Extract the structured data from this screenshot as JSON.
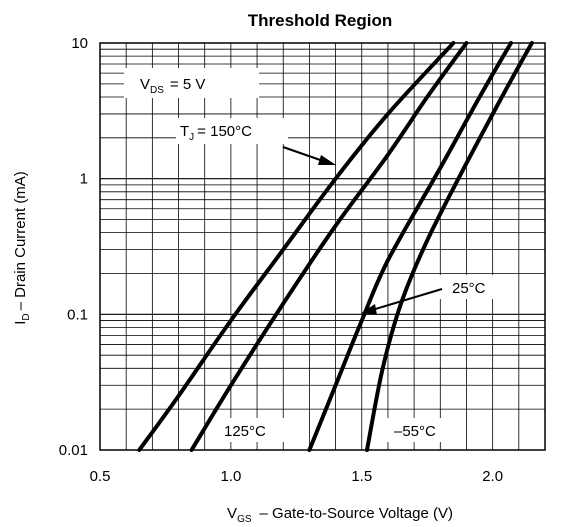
{
  "chart_data": {
    "type": "line",
    "title": "Threshold Region",
    "x_axis": {
      "label_main": "V",
      "label_sub": "GS",
      "label_rest": "–  Gate-to-Source Voltage (V)",
      "range": [
        0.5,
        2.2
      ],
      "ticks": [
        0.5,
        1.0,
        1.5,
        2.0
      ],
      "tick_labels": [
        "0.5",
        "1.0",
        "1.5",
        "2.0"
      ]
    },
    "y_axis": {
      "label_main": "I",
      "label_sub": "D",
      "label_rest": "– Drain Current (mA)",
      "scale": "log",
      "range": [
        0.01,
        10
      ],
      "ticks": [
        0.01,
        0.1,
        1,
        10
      ],
      "tick_labels": [
        "0.01",
        "0.1",
        "1",
        "10"
      ]
    },
    "grid": true,
    "series": [
      {
        "name": "150°C",
        "x": [
          0.65,
          0.8,
          1.0,
          1.2,
          1.4,
          1.6,
          1.85
        ],
        "y": [
          0.01,
          0.025,
          0.09,
          0.3,
          1.0,
          3.0,
          10
        ]
      },
      {
        "name": "125°C",
        "x": [
          0.85,
          1.0,
          1.2,
          1.4,
          1.6,
          1.75,
          1.9
        ],
        "y": [
          0.01,
          0.03,
          0.12,
          0.45,
          1.5,
          4.0,
          10
        ]
      },
      {
        "name": "25°C",
        "x": [
          1.3,
          1.4,
          1.5,
          1.6,
          1.8,
          1.95,
          2.07
        ],
        "y": [
          0.01,
          0.03,
          0.09,
          0.25,
          1.2,
          4.0,
          10
        ]
      },
      {
        "name": "–55°C",
        "x": [
          1.52,
          1.58,
          1.65,
          1.75,
          1.9,
          2.05,
          2.15
        ],
        "y": [
          0.01,
          0.04,
          0.12,
          0.35,
          1.3,
          4.5,
          10
        ]
      }
    ],
    "annotations": {
      "vds_main": "V",
      "vds_sub": "DS",
      "vds_rest": "= 5 V",
      "tj_main": "T",
      "tj_sub": "J",
      "tj_rest": "= 150°C",
      "label_25": "25°C",
      "label_125": "125°C",
      "label_m55": "–55°C"
    }
  }
}
